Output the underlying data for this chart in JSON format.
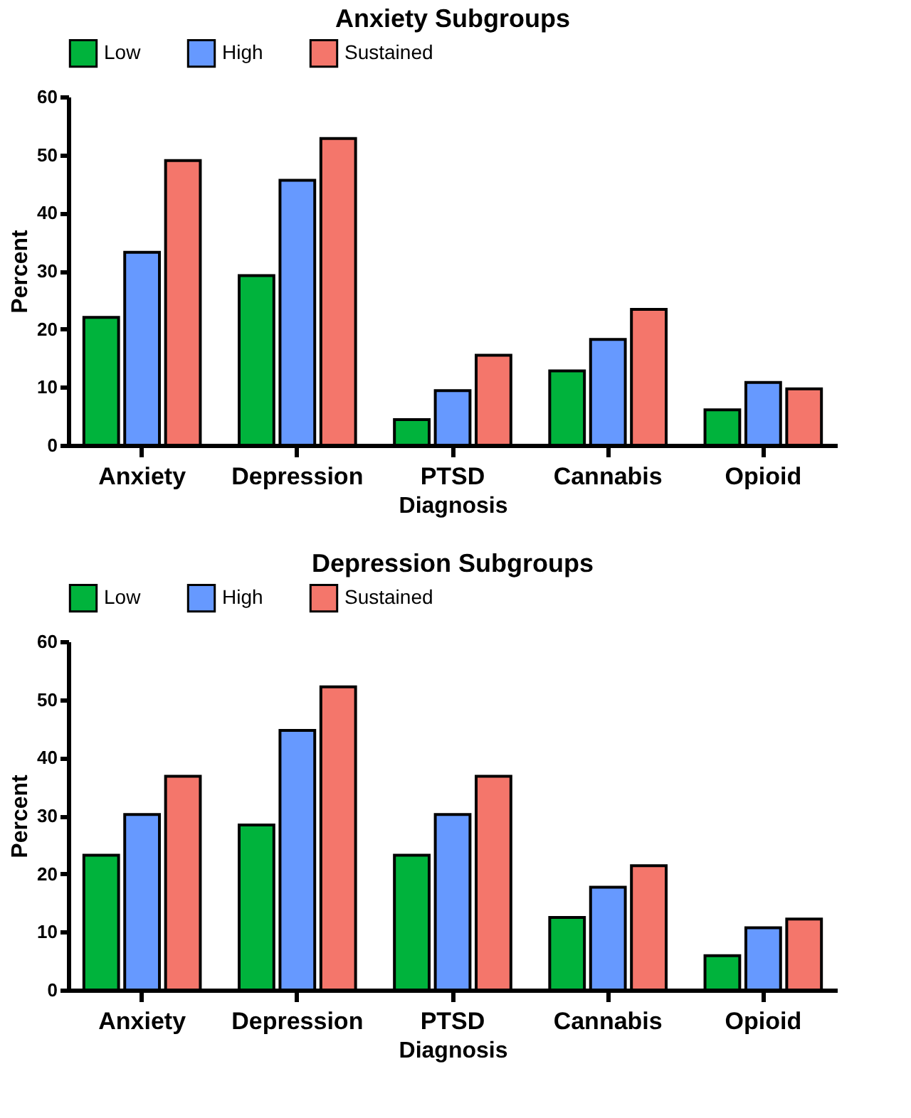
{
  "chart_data": [
    {
      "type": "bar",
      "title": "Anxiety Subgroups",
      "xlabel": "Diagnosis",
      "ylabel": "Percent",
      "categories": [
        "Anxiety",
        "Depression",
        "PTSD",
        "Cannabis",
        "Opioid"
      ],
      "series": [
        {
          "name": "Low",
          "color": "#00b33c",
          "values": [
            22,
            29.2,
            4.4,
            12.8,
            6.1
          ]
        },
        {
          "name": "High",
          "color": "#6699ff",
          "values": [
            33.2,
            45.6,
            9.4,
            18.2,
            10.8
          ]
        },
        {
          "name": "Sustained",
          "color": "#f4766b",
          "values": [
            49,
            52.8,
            15.5,
            23.4,
            9.7
          ]
        }
      ],
      "ylim": [
        0,
        60
      ],
      "yticks": [
        0,
        10,
        20,
        30,
        40,
        50,
        60
      ],
      "grid": false,
      "legend": "top"
    },
    {
      "type": "bar",
      "title": "Depression Subgroups",
      "xlabel": "Diagnosis",
      "ylabel": "Percent",
      "categories": [
        "Anxiety",
        "Depression",
        "PTSD",
        "Cannabis",
        "Opioid"
      ],
      "series": [
        {
          "name": "Low",
          "color": "#00b33c",
          "values": [
            23.2,
            28.4,
            23.2,
            12.5,
            5.9
          ]
        },
        {
          "name": "High",
          "color": "#6699ff",
          "values": [
            30.2,
            44.7,
            30.2,
            17.7,
            10.7
          ]
        },
        {
          "name": "Sustained",
          "color": "#f4766b",
          "values": [
            36.8,
            52.2,
            36.8,
            21.4,
            12.2
          ]
        }
      ],
      "ylim": [
        0,
        60
      ],
      "yticks": [
        0,
        10,
        20,
        30,
        40,
        50,
        60
      ],
      "grid": false,
      "legend": "top"
    }
  ]
}
